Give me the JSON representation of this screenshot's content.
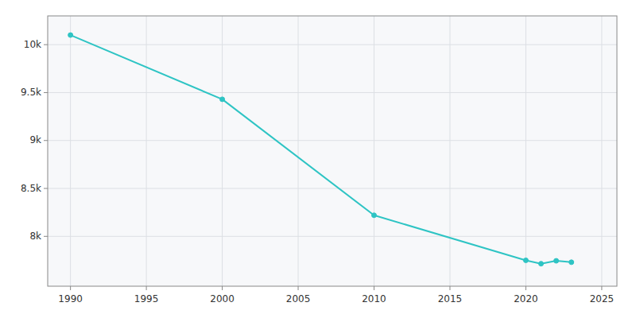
{
  "chart_data": {
    "type": "line",
    "x": [
      1990,
      2000,
      2010,
      2020,
      2021,
      2022,
      2023
    ],
    "values": [
      10100,
      9430,
      8220,
      7750,
      7715,
      7745,
      7730
    ],
    "color": "#2ec4c4",
    "marker": "circle",
    "xlim": [
      1988.5,
      2026
    ],
    "ylim": [
      7480,
      10300
    ],
    "xticks": [
      1990,
      1995,
      2000,
      2005,
      2010,
      2015,
      2020,
      2025
    ],
    "yticks": [
      {
        "value": 8000,
        "label": "8k"
      },
      {
        "value": 8500,
        "label": "8.5k"
      },
      {
        "value": 9000,
        "label": "9k"
      },
      {
        "value": 9500,
        "label": "9.5k"
      },
      {
        "value": 10000,
        "label": "10k"
      }
    ],
    "grid": true
  }
}
